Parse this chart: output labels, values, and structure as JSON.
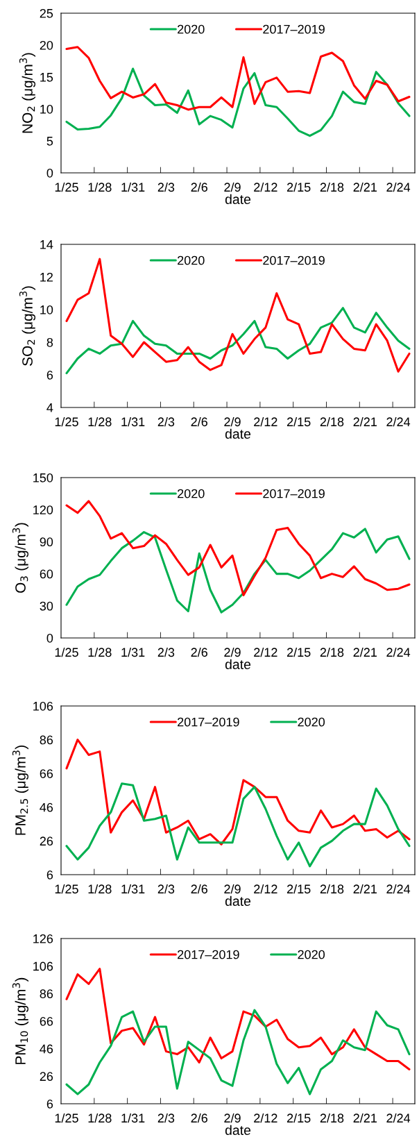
{
  "chart_data": [
    {
      "type": "line",
      "xlabel": "date",
      "ylabel": "NO$_{2}$ (μg/m$^{3}$)",
      "categories": [
        "1/25",
        null,
        null,
        "1/28",
        null,
        null,
        "1/31",
        null,
        null,
        "2/3",
        null,
        null,
        "2/6",
        null,
        null,
        "2/9",
        null,
        null,
        "2/12",
        null,
        null,
        "2/15",
        null,
        null,
        "2/18",
        null,
        null,
        "2/21",
        null,
        null,
        "2/24",
        null
      ],
      "ylim": [
        0,
        25
      ],
      "yticks": [
        0,
        5,
        10,
        15,
        20,
        25
      ],
      "legend": "top",
      "grid": false,
      "series": [
        {
          "name": "2020",
          "color": "#00b050",
          "values": [
            8,
            6.8,
            6.9,
            7.2,
            9,
            11.7,
            16.3,
            12.1,
            10.6,
            10.7,
            9.4,
            12.9,
            7.6,
            8.9,
            8.3,
            7.1,
            13.2,
            15.6,
            10.6,
            10.3,
            8.5,
            6.6,
            5.8,
            6.7,
            8.9,
            12.7,
            11.1,
            10.8,
            15.8,
            13.8,
            10.9,
            8.9
          ]
        },
        {
          "name": "2017–2019",
          "color": "#ff0000",
          "values": [
            19.4,
            19.7,
            18,
            14.4,
            11.7,
            12.7,
            11.8,
            12.3,
            13.9,
            11,
            10.6,
            9.9,
            10.3,
            10.3,
            11.8,
            10.3,
            18.1,
            10.8,
            14.2,
            14.9,
            12.7,
            12.8,
            12.5,
            18.2,
            18.8,
            17.5,
            13.7,
            11.6,
            14.4,
            13.8,
            11.2,
            11.9
          ]
        }
      ]
    },
    {
      "type": "line",
      "xlabel": "date",
      "ylabel": "SO$_{2}$ (μg/m$^{3}$)",
      "categories": [
        "1/25",
        null,
        null,
        "1/28",
        null,
        null,
        "1/31",
        null,
        null,
        "2/3",
        null,
        null,
        "2/6",
        null,
        null,
        "2/9",
        null,
        null,
        "2/12",
        null,
        null,
        "2/15",
        null,
        null,
        "2/18",
        null,
        null,
        "2/21",
        null,
        null,
        "2/24",
        null
      ],
      "ylim": [
        4,
        14
      ],
      "yticks": [
        4,
        6,
        8,
        10,
        12,
        14
      ],
      "legend": "top",
      "grid": false,
      "series": [
        {
          "name": "2020",
          "color": "#00b050",
          "values": [
            6.1,
            7,
            7.6,
            7.3,
            7.8,
            7.9,
            9.3,
            8.4,
            7.9,
            7.8,
            7.3,
            7.3,
            7.3,
            7,
            7.5,
            7.8,
            8.5,
            9.3,
            7.7,
            7.6,
            7,
            7.5,
            7.9,
            8.9,
            9.2,
            10.1,
            8.9,
            8.6,
            9.8,
            8.9,
            8.1,
            7.6
          ]
        },
        {
          "name": "2017–2019",
          "color": "#ff0000",
          "values": [
            9.3,
            10.6,
            11,
            13.1,
            8.4,
            7.9,
            7.1,
            8,
            7.4,
            6.8,
            6.9,
            7.7,
            6.8,
            6.3,
            6.6,
            8.5,
            7.3,
            8.2,
            8.9,
            11,
            9.4,
            9.1,
            7.3,
            7.4,
            9.1,
            8.2,
            7.6,
            7.5,
            9.1,
            8.1,
            6.2,
            7.3
          ]
        }
      ]
    },
    {
      "type": "line",
      "xlabel": "date",
      "ylabel": "O$_{3}$ (μg/m$^{3}$)",
      "categories": [
        "1/25",
        null,
        null,
        "1/28",
        null,
        null,
        "1/31",
        null,
        null,
        "2/3",
        null,
        null,
        "2/6",
        null,
        null,
        "2/9",
        null,
        null,
        "2/12",
        null,
        null,
        "2/15",
        null,
        null,
        "2/18",
        null,
        null,
        "2/21",
        null,
        null,
        "2/24",
        null
      ],
      "ylim": [
        0,
        150
      ],
      "yticks": [
        0,
        30,
        60,
        90,
        120,
        150
      ],
      "legend": "top",
      "grid": false,
      "series": [
        {
          "name": "2020",
          "color": "#00b050",
          "values": [
            31,
            48,
            55,
            59,
            72,
            84,
            91,
            99,
            94,
            64,
            35,
            25,
            79,
            45,
            24,
            31,
            42,
            60,
            73,
            60,
            60,
            56,
            63,
            73,
            83,
            98,
            94,
            102,
            80,
            92,
            95,
            74
          ]
        },
        {
          "name": "2017–2019",
          "color": "#ff0000",
          "values": [
            124,
            117,
            128,
            114,
            93,
            98,
            84,
            86,
            96,
            88,
            73,
            59,
            66,
            87,
            66,
            77,
            40,
            58,
            75,
            101,
            103,
            88,
            77,
            56,
            60,
            57,
            67,
            55,
            51,
            45,
            46,
            50
          ]
        }
      ]
    },
    {
      "type": "line",
      "xlabel": "date",
      "ylabel": "PM$_{2.5}$ (μg/m$^{3}$)",
      "categories": [
        "1/25",
        null,
        null,
        "1/28",
        null,
        null,
        "1/31",
        null,
        null,
        "2/3",
        null,
        null,
        "2/6",
        null,
        null,
        "2/9",
        null,
        null,
        "2/12",
        null,
        null,
        "2/15",
        null,
        null,
        "2/18",
        null,
        null,
        "2/21",
        null,
        null,
        "2/24",
        null
      ],
      "ylim": [
        6,
        106
      ],
      "yticks": [
        6,
        26,
        46,
        66,
        86,
        106
      ],
      "legend": "top",
      "grid": false,
      "series": [
        {
          "name": "2017–2019",
          "color": "#ff0000",
          "values": [
            69,
            86,
            77,
            79,
            31,
            43,
            50,
            39,
            58,
            31,
            34,
            38,
            27,
            30,
            24,
            33,
            62,
            58,
            52,
            52,
            38,
            32,
            31,
            44,
            34,
            36,
            41,
            32,
            33,
            28,
            32,
            27
          ]
        },
        {
          "name": "2020",
          "color": "#00b050",
          "values": [
            23,
            15,
            22,
            35,
            43,
            60,
            59,
            38,
            39,
            41,
            15,
            34,
            25,
            25,
            25,
            25,
            51,
            58,
            45,
            29,
            15,
            25,
            11,
            22,
            26,
            32,
            36,
            36,
            57,
            47,
            33,
            23
          ]
        }
      ]
    },
    {
      "type": "line",
      "xlabel": "date",
      "ylabel": "PM$_{10}$ (μg/m$^{3}$)",
      "categories": [
        "1/25",
        null,
        null,
        "1/28",
        null,
        null,
        "1/31",
        null,
        null,
        "2/3",
        null,
        null,
        "2/6",
        null,
        null,
        "2/9",
        null,
        null,
        "2/12",
        null,
        null,
        "2/15",
        null,
        null,
        "2/18",
        null,
        null,
        "2/21",
        null,
        null,
        "2/24",
        null
      ],
      "ylim": [
        6,
        126
      ],
      "yticks": [
        6,
        26,
        46,
        66,
        86,
        106,
        126
      ],
      "legend": "top",
      "grid": false,
      "series": [
        {
          "name": "2017–2019",
          "color": "#ff0000",
          "values": [
            82,
            100,
            93,
            104,
            50,
            59,
            61,
            49,
            69,
            44,
            42,
            47,
            36,
            54,
            39,
            44,
            73,
            70,
            62,
            67,
            53,
            47,
            48,
            54,
            42,
            47,
            60,
            47,
            42,
            37,
            37,
            31
          ]
        },
        {
          "name": "2020",
          "color": "#00b050",
          "values": [
            20,
            13,
            20,
            36,
            48,
            69,
            73,
            51,
            62,
            62,
            17,
            51,
            45,
            39,
            23,
            19,
            52,
            74,
            62,
            35,
            21,
            32,
            13,
            31,
            37,
            52,
            47,
            45,
            73,
            63,
            60,
            42
          ]
        }
      ]
    }
  ]
}
